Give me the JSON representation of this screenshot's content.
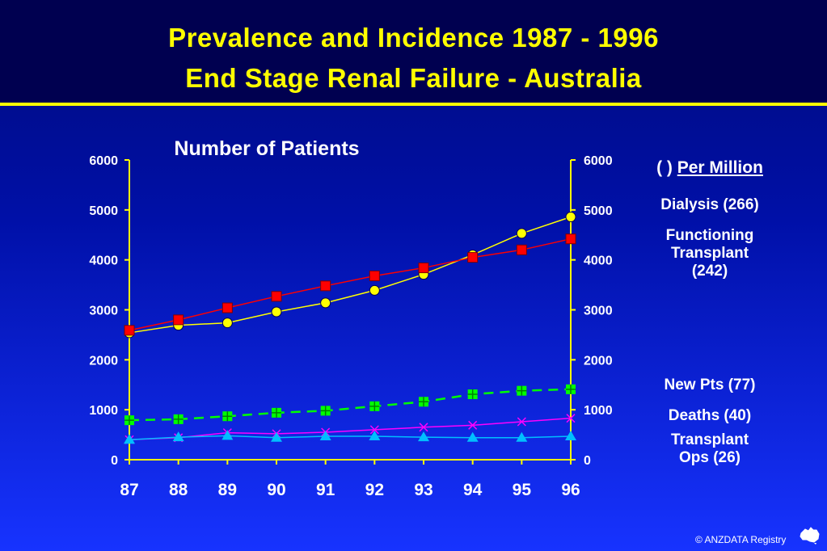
{
  "colors": {
    "title": "#ffff00",
    "header_bg": "#000050",
    "dialysis": "#ffff00",
    "transplant": "#ff0000",
    "new_patients": "#00ff00",
    "deaths": "#00bfff",
    "transplant_ops": "#ff00ff"
  },
  "header": {
    "title_line1": "Prevalence and Incidence  1987 - 1996",
    "title_line2": "End Stage Renal Failure  -  Australia"
  },
  "legend": {
    "per_million_prefix": "(  ) ",
    "per_million_text": "Per Million",
    "dialysis": "Dialysis (266)",
    "functioning_transplant": "Functioning\nTransplant\n(242)",
    "new_pts": "New Pts (77)",
    "deaths": "Deaths (40)",
    "transplant_ops": "Transplant\nOps (26)"
  },
  "footer": {
    "copyright": "© ANZDATA Registry",
    "logo_icon": "australia-map-icon"
  },
  "chart_data": {
    "type": "line",
    "title": "Number of Patients",
    "xlabel": "",
    "ylabel": "",
    "categories": [
      "87",
      "88",
      "89",
      "90",
      "91",
      "92",
      "93",
      "94",
      "95",
      "96"
    ],
    "ylim": [
      0,
      6000
    ],
    "yticks": [
      "0",
      "1000",
      "2000",
      "3000",
      "4000",
      "5000",
      "6000"
    ],
    "right_axis_ticks": [
      "0",
      "1000",
      "2000",
      "3000",
      "4000",
      "5000",
      "6000"
    ],
    "grid": false,
    "series": [
      {
        "key": "dialysis",
        "values": [
          2540,
          2690,
          2740,
          2960,
          3140,
          3390,
          3710,
          4100,
          4530,
          4860
        ],
        "color": "#ffff00",
        "marker": "circle",
        "dash": false
      },
      {
        "key": "transplant",
        "values": [
          2590,
          2800,
          3040,
          3270,
          3480,
          3680,
          3840,
          4050,
          4200,
          4420
        ],
        "color": "#ff0000",
        "marker": "square",
        "dash": false
      },
      {
        "key": "new_patients",
        "values": [
          790,
          810,
          870,
          940,
          980,
          1070,
          1160,
          1310,
          1380,
          1410
        ],
        "color": "#00ff00",
        "marker": "square-plus",
        "dash": true
      },
      {
        "key": "transplant_ops",
        "values": [
          400,
          440,
          540,
          520,
          550,
          600,
          650,
          690,
          760,
          830
        ],
        "color": "#ff00ff",
        "marker": "x",
        "dash": false
      },
      {
        "key": "deaths",
        "values": [
          400,
          450,
          480,
          440,
          470,
          470,
          450,
          440,
          440,
          470
        ],
        "color": "#00bfff",
        "marker": "triangle",
        "dash": false
      }
    ]
  }
}
